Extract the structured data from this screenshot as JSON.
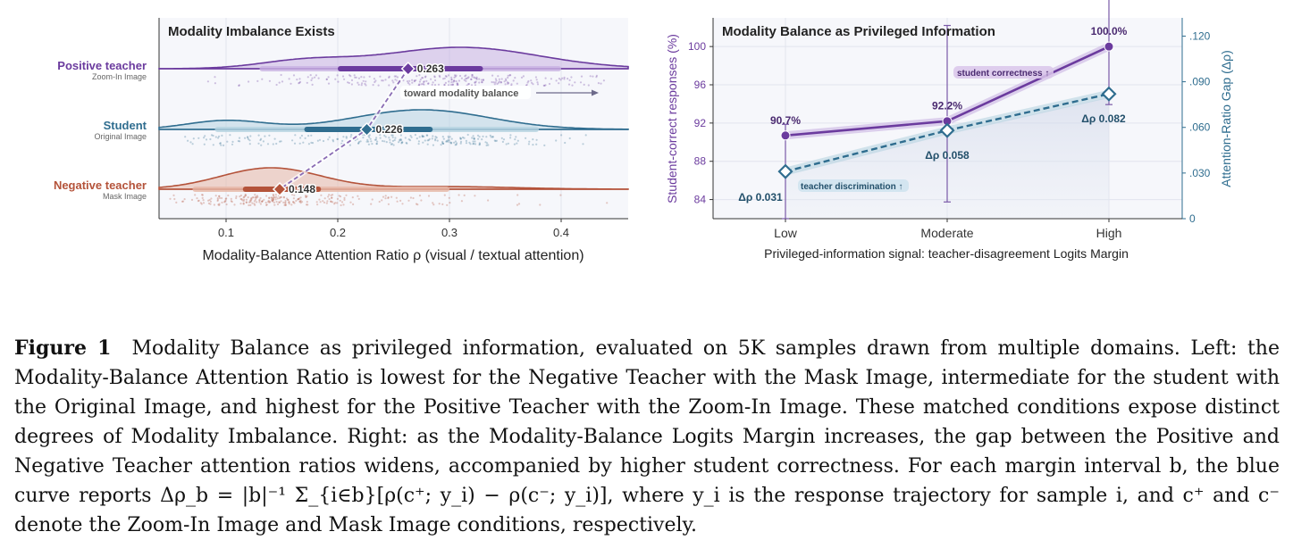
{
  "left_panel": {
    "title": "Modality Imbalance Exists",
    "rows": [
      {
        "label": "Positive teacher",
        "sublabel": "Zoom-In Image",
        "median_text": "0.263",
        "median": 0.263,
        "color": "#6b3b9e"
      },
      {
        "label": "Student",
        "sublabel": "Original Image",
        "median_text": "0.226",
        "median": 0.226,
        "color": "#2f6d8f"
      },
      {
        "label": "Negative teacher",
        "sublabel": "Mask Image",
        "median_text": "0.148",
        "median": 0.148,
        "color": "#b4533a"
      }
    ],
    "annotation": "toward modality balance",
    "ticks": [
      "0.1",
      "0.2",
      "0.3",
      "0.4"
    ],
    "xlabel": "Modality-Balance Attention Ratio ρ  (visual / textual attention)"
  },
  "right_panel": {
    "title": "Modality Balance as Privileged Information",
    "ylabel_left": "Student-correct responses (%)",
    "ylabel_right": "Attention-Ratio Gap (Δρ)",
    "xlabel": "Privileged-information signal: teacher-disagreement Logits Margin",
    "left_ticks": [
      "84",
      "88",
      "92",
      "96",
      "100"
    ],
    "right_ticks": [
      "0",
      ".030",
      ".060",
      ".090",
      ".120"
    ],
    "annotation_top": "student correctness ↑",
    "annotation_bottom": "teacher discrimination ↑"
  },
  "chart_data": [
    {
      "type": "violin",
      "title": "Modality Imbalance Exists",
      "xlabel": "Modality-Balance Attention Ratio ρ  (visual / textual attention)",
      "xlim": [
        0.04,
        0.46
      ],
      "series": [
        {
          "name": "Positive teacher",
          "median": 0.263
        },
        {
          "name": "Student",
          "median": 0.226
        },
        {
          "name": "Negative teacher",
          "median": 0.148
        }
      ]
    },
    {
      "type": "line",
      "title": "Modality Balance as Privileged Information",
      "categories": [
        "Low",
        "Moderate",
        "High"
      ],
      "xlabel": "Privileged-information signal: teacher-disagreement Logits Margin",
      "series": [
        {
          "name": "Student-correct responses (%)",
          "values": [
            90.7,
            92.2,
            100.0
          ],
          "labels": [
            "90.7%",
            "92.2%",
            "100.0%"
          ],
          "axis": "left"
        },
        {
          "name": "Attention-Ratio Gap (Δρ)",
          "values": [
            0.031,
            0.058,
            0.082
          ],
          "labels": [
            "Δρ 0.031",
            "Δρ 0.058",
            "Δρ 0.082"
          ],
          "axis": "right",
          "err_low": [
            0.031,
            0.047,
            0.007
          ],
          "err_high": [
            0.031,
            0.069,
            0.145
          ]
        }
      ],
      "ylim_left": [
        82,
        103
      ],
      "ylim_right": [
        0,
        0.132
      ]
    }
  ],
  "caption": {
    "label": "Figure 1",
    "text": "Modality Balance as privileged information, evaluated on 5K samples drawn from multiple domains. Left: the Modality-Balance Attention Ratio is lowest for the Negative Teacher with the Mask Image, intermediate for the student with the Original Image, and highest for the Positive Teacher with the Zoom-In Image. These matched conditions expose distinct degrees of Modality Imbalance. Right: as the Modality-Balance Logits Margin increases, the gap between the Positive and Negative Teacher attention ratios widens, accompanied by higher student correctness. For each margin interval b, the blue curve reports Δρ_b = |b|⁻¹ Σ_{i∈b}[ρ(c⁺; y_i) − ρ(c⁻; y_i)], where y_i is the response trajectory for sample i, and c⁺ and c⁻ denote the Zoom-In Image and Mask Image conditions, respectively."
  }
}
